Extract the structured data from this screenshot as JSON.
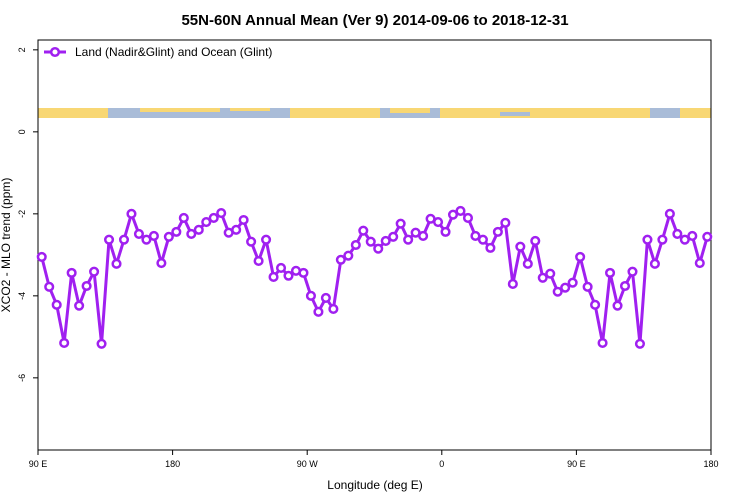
{
  "chart_data": {
    "type": "line",
    "title": "55N-60N Annual Mean (Ver 9)   2014-09-06 to 2018-12-31",
    "x_label": "Longitude (deg E)",
    "y_label": "XCO2 - MLO trend (ppm)",
    "x": [
      92.5,
      97.5,
      102.5,
      107.5,
      112.5,
      117.5,
      122.5,
      127.5,
      132.5,
      137.5,
      142.5,
      147.5,
      152.5,
      157.5,
      162.5,
      167.5,
      172.5,
      177.5,
      182.5,
      187.5,
      192.5,
      197.5,
      202.5,
      207.5,
      212.5,
      217.5,
      222.5,
      227.5,
      232.5,
      237.5,
      242.5,
      247.5,
      252.5,
      257.5,
      262.5,
      267.5,
      272.5,
      277.5,
      282.5,
      287.5,
      292.5,
      297.5,
      302.5,
      307.5,
      312.5,
      317.5,
      322.5,
      327.5,
      332.5,
      337.5,
      342.5,
      347.5,
      352.5,
      357.5,
      362.5,
      367.5,
      372.5,
      377.5,
      382.5,
      387.5,
      392.5,
      397.5,
      402.5,
      407.5,
      412.5,
      417.5,
      422.5,
      427.5,
      432.5,
      437.5,
      442.5,
      447.5,
      452.5,
      457.5,
      462.5,
      467.5,
      472.5,
      477.5,
      482.5,
      487.5,
      492.5,
      497.5,
      502.5,
      507.5,
      512.5,
      517.5,
      522.5,
      527.5,
      532.5,
      537.5
    ],
    "series": [
      {
        "name": "Land (Nadir&Glint) and Ocean (Glint)",
        "color": "#a020f0",
        "values": [
          -3.05,
          -3.78,
          -4.22,
          -5.15,
          -3.44,
          -4.24,
          -3.76,
          -3.41,
          -5.17,
          -2.63,
          -3.22,
          -2.63,
          -2.0,
          -2.49,
          -2.63,
          -2.54,
          -3.2,
          -2.56,
          -2.44,
          -2.1,
          -2.49,
          -2.39,
          -2.2,
          -2.1,
          -1.98,
          -2.46,
          -2.39,
          -2.15,
          -2.68,
          -3.15,
          -2.63,
          -3.54,
          -3.32,
          -3.51,
          -3.39,
          -3.44,
          -4.0,
          -4.39,
          -4.05,
          -4.32,
          -3.12,
          -3.02,
          -2.76,
          -2.41,
          -2.68,
          -2.85,
          -2.66,
          -2.56,
          -2.24,
          -2.63,
          -2.46,
          -2.54,
          -2.12,
          -2.2,
          -2.44,
          -2.02,
          -1.93,
          -2.1,
          -2.54,
          -2.63,
          -2.83,
          -2.44,
          -2.22,
          -3.71,
          -2.8,
          -3.22,
          -2.66,
          -3.56,
          -3.46,
          -3.9,
          -3.8,
          -3.68,
          -3.05,
          -3.78,
          -4.22,
          -5.15,
          -3.44,
          -4.24,
          -3.76,
          -3.41,
          -5.17,
          -2.63,
          -3.22,
          -2.63,
          -2.0,
          -2.49,
          -2.63,
          -2.54,
          -3.2,
          -2.56
        ]
      }
    ],
    "xlim": [
      90,
      540
    ],
    "xticks": [
      {
        "value": 90,
        "label": "90 E"
      },
      180,
      {
        "value": 270,
        "label": "90 W"
      },
      {
        "value": 360,
        "label": "0"
      },
      {
        "value": 450,
        "label": "90 E"
      },
      {
        "value": 540,
        "label": "180"
      }
    ],
    "ylim": [
      -7.76,
      2.24
    ],
    "yticks": [
      -6,
      -4,
      -2,
      0,
      2
    ],
    "legend": "top-left"
  }
}
